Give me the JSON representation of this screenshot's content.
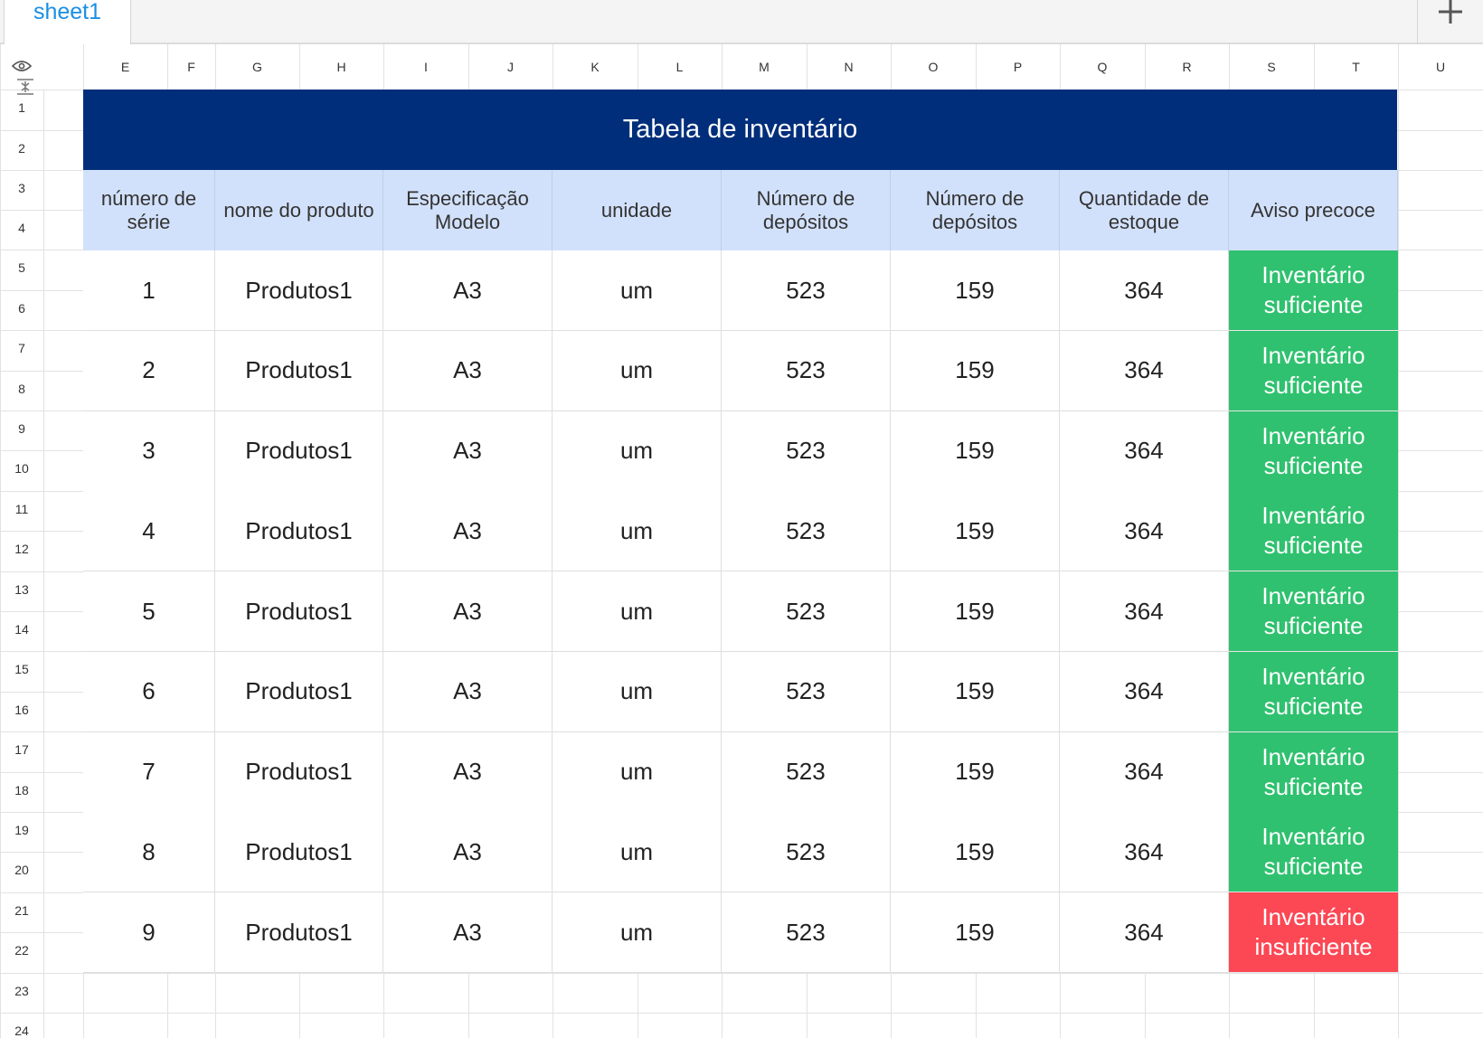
{
  "tabs": [
    {
      "label": "sheet1"
    }
  ],
  "add_sheet_icon": "plus-icon",
  "corner_icons": [
    "eye-icon",
    "freeze-rows-icon"
  ],
  "columns": [
    "E",
    "F",
    "G",
    "H",
    "I",
    "J",
    "K",
    "L",
    "M",
    "N",
    "O",
    "P",
    "Q",
    "R",
    "S",
    "T",
    "U"
  ],
  "rows": [
    "1",
    "2",
    "3",
    "4",
    "5",
    "6",
    "7",
    "8",
    "9",
    "10",
    "11",
    "12",
    "13",
    "14",
    "15",
    "16",
    "17",
    "18",
    "19",
    "20",
    "21",
    "22",
    "23",
    "24"
  ],
  "colors": {
    "title_bg": "#002e7a",
    "header_bg": "#d2e1fb",
    "ok": "#2fc16f",
    "low": "#fc4754"
  },
  "table": {
    "title": "Tabela de inventário",
    "headers": [
      [
        "número de",
        "série"
      ],
      [
        "nome do produto"
      ],
      [
        "Especificação",
        "Modelo"
      ],
      [
        "unidade"
      ],
      [
        "Número de",
        "depósitos"
      ],
      [
        "Número de",
        "depósitos"
      ],
      [
        "Quantidade de",
        "estoque"
      ],
      [
        "Aviso precoce"
      ]
    ],
    "rows": [
      {
        "serial": "1",
        "name": "Produtos1",
        "model": "A3",
        "unit": "um",
        "dep1": "523",
        "dep2": "159",
        "stock": "364",
        "warning": [
          "Inventário",
          "suficiente"
        ],
        "status": "ok"
      },
      {
        "serial": "2",
        "name": "Produtos1",
        "model": "A3",
        "unit": "um",
        "dep1": "523",
        "dep2": "159",
        "stock": "364",
        "warning": [
          "Inventário",
          "suficiente"
        ],
        "status": "ok"
      },
      {
        "serial": "3",
        "name": "Produtos1",
        "model": "A3",
        "unit": "um",
        "dep1": "523",
        "dep2": "159",
        "stock": "364",
        "warning": [
          "Inventário",
          "suficiente"
        ],
        "status": "ok"
      },
      {
        "serial": "4",
        "name": "Produtos1",
        "model": "A3",
        "unit": "um",
        "dep1": "523",
        "dep2": "159",
        "stock": "364",
        "warning": [
          "Inventário",
          "suficiente"
        ],
        "status": "ok"
      },
      {
        "serial": "5",
        "name": "Produtos1",
        "model": "A3",
        "unit": "um",
        "dep1": "523",
        "dep2": "159",
        "stock": "364",
        "warning": [
          "Inventário",
          "suficiente"
        ],
        "status": "ok"
      },
      {
        "serial": "6",
        "name": "Produtos1",
        "model": "A3",
        "unit": "um",
        "dep1": "523",
        "dep2": "159",
        "stock": "364",
        "warning": [
          "Inventário",
          "suficiente"
        ],
        "status": "ok"
      },
      {
        "serial": "7",
        "name": "Produtos1",
        "model": "A3",
        "unit": "um",
        "dep1": "523",
        "dep2": "159",
        "stock": "364",
        "warning": [
          "Inventário",
          "suficiente"
        ],
        "status": "ok"
      },
      {
        "serial": "8",
        "name": "Produtos1",
        "model": "A3",
        "unit": "um",
        "dep1": "523",
        "dep2": "159",
        "stock": "364",
        "warning": [
          "Inventário",
          "suficiente"
        ],
        "status": "ok"
      },
      {
        "serial": "9",
        "name": "Produtos1",
        "model": "A3",
        "unit": "um",
        "dep1": "523",
        "dep2": "159",
        "stock": "364",
        "warning": [
          "Inventário",
          "insuficiente"
        ],
        "status": "low"
      }
    ]
  }
}
